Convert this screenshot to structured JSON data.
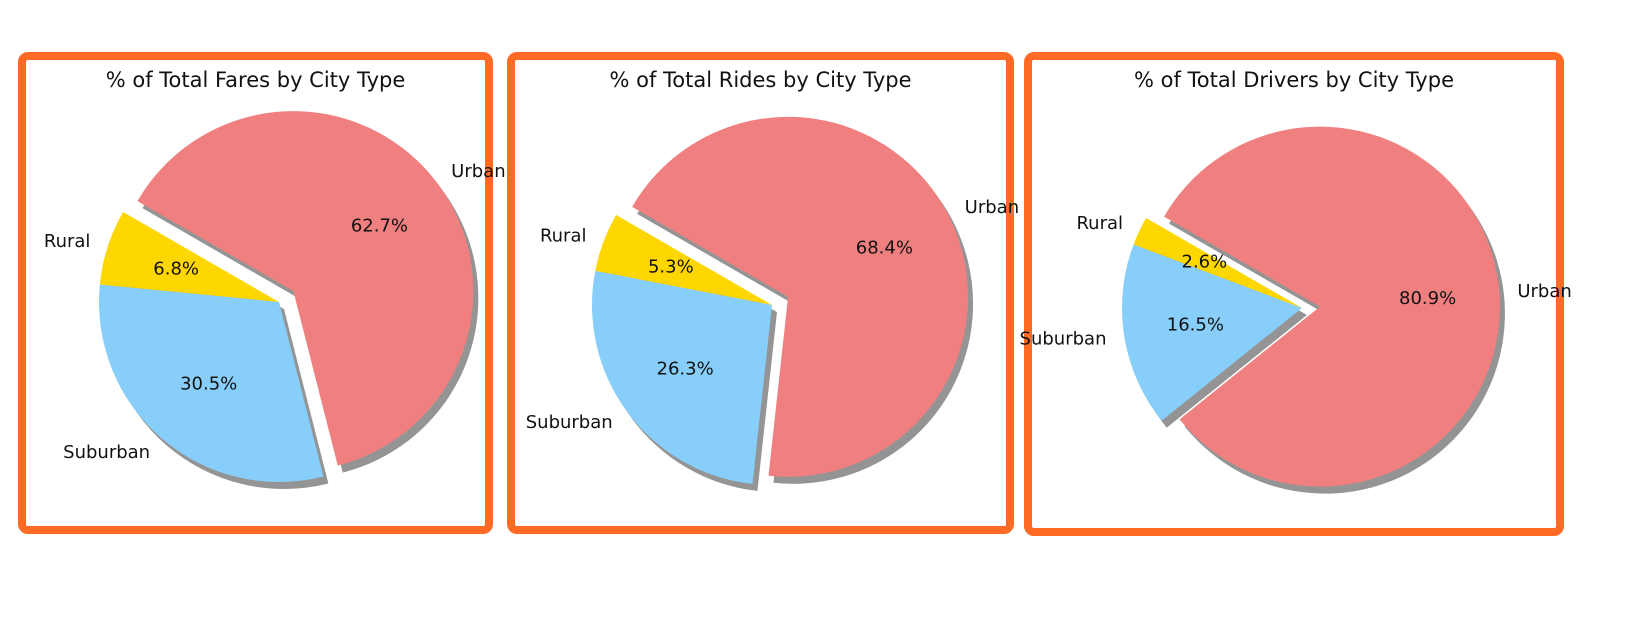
{
  "accent": "#ff6a24",
  "chart_data": [
    {
      "type": "pie",
      "title": "% of Total Fares by City Type",
      "labels": [
        "Rural",
        "Suburban",
        "Urban"
      ],
      "values": [
        6.8,
        30.5,
        62.7
      ],
      "value_labels": [
        "6.8%",
        "30.5%",
        "62.7%"
      ],
      "colors": [
        "#ffd700",
        "#87cefa",
        "#f08080"
      ],
      "explode": [
        0,
        0,
        0.1
      ],
      "shadow": true,
      "start_angle": 150
    },
    {
      "type": "pie",
      "title": "% of Total Rides by City Type",
      "labels": [
        "Rural",
        "Suburban",
        "Urban"
      ],
      "values": [
        5.3,
        26.3,
        68.4
      ],
      "value_labels": [
        "5.3%",
        "26.3%",
        "68.4%"
      ],
      "colors": [
        "#ffd700",
        "#87cefa",
        "#f08080"
      ],
      "explode": [
        0,
        0,
        0.1
      ],
      "shadow": true,
      "start_angle": 150
    },
    {
      "type": "pie",
      "title": "% of Total Drivers by City Type",
      "labels": [
        "Rural",
        "Suburban",
        "Urban"
      ],
      "values": [
        2.6,
        16.5,
        80.9
      ],
      "value_labels": [
        "2.6%",
        "16.5%",
        "80.9%"
      ],
      "colors": [
        "#ffd700",
        "#87cefa",
        "#f08080"
      ],
      "explode": [
        0,
        0,
        0.1
      ],
      "shadow": true,
      "start_angle": 150
    }
  ]
}
